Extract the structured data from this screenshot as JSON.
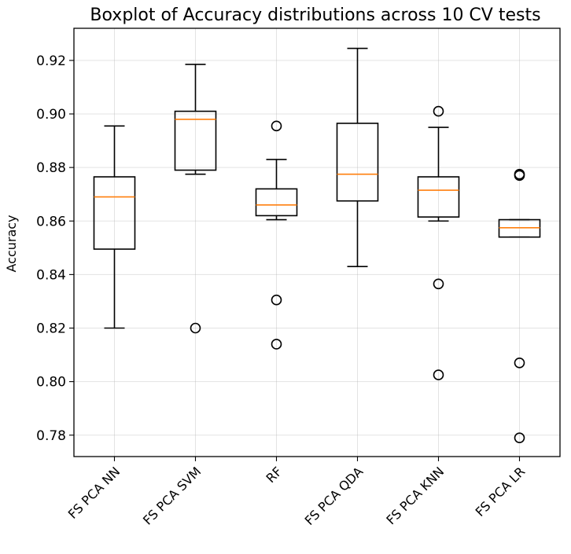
{
  "chart_data": {
    "type": "boxplot",
    "title": "Boxplot of Accuracy distributions across 10 CV tests",
    "xlabel": "",
    "ylabel": "Accuracy",
    "ylim": [
      0.772,
      0.932
    ],
    "yticks": [
      0.78,
      0.8,
      0.82,
      0.84,
      0.86,
      0.88,
      0.9,
      0.92
    ],
    "ytick_labels": [
      "0.78",
      "0.80",
      "0.82",
      "0.84",
      "0.86",
      "0.88",
      "0.90",
      "0.92"
    ],
    "grid": true,
    "categories": [
      "FS PCA NN",
      "FS PCA SVM",
      "RF",
      "FS PCA QDA",
      "FS PCA KNN",
      "FS PCA LR"
    ],
    "boxes": [
      {
        "whisker_low": 0.82,
        "q1": 0.8495,
        "median": 0.869,
        "q3": 0.8765,
        "whisker_high": 0.8955,
        "fliers": []
      },
      {
        "whisker_low": 0.8775,
        "q1": 0.879,
        "median": 0.898,
        "q3": 0.901,
        "whisker_high": 0.9185,
        "fliers": [
          0.82
        ]
      },
      {
        "whisker_low": 0.8605,
        "q1": 0.862,
        "median": 0.866,
        "q3": 0.872,
        "whisker_high": 0.883,
        "fliers": [
          0.8955,
          0.8305,
          0.814
        ]
      },
      {
        "whisker_low": 0.843,
        "q1": 0.8675,
        "median": 0.8775,
        "q3": 0.8965,
        "whisker_high": 0.9245,
        "fliers": []
      },
      {
        "whisker_low": 0.86,
        "q1": 0.8615,
        "median": 0.8715,
        "q3": 0.8765,
        "whisker_high": 0.895,
        "fliers": [
          0.901,
          0.8365,
          0.8025
        ]
      },
      {
        "whisker_low": 0.854,
        "q1": 0.854,
        "median": 0.8575,
        "q3": 0.8605,
        "whisker_high": 0.8605,
        "fliers": [
          0.8775,
          0.877,
          0.807,
          0.779
        ]
      }
    ],
    "colors": {
      "box": "#000000",
      "median": "#ff7f0e",
      "grid": "#b0b0b0"
    }
  }
}
